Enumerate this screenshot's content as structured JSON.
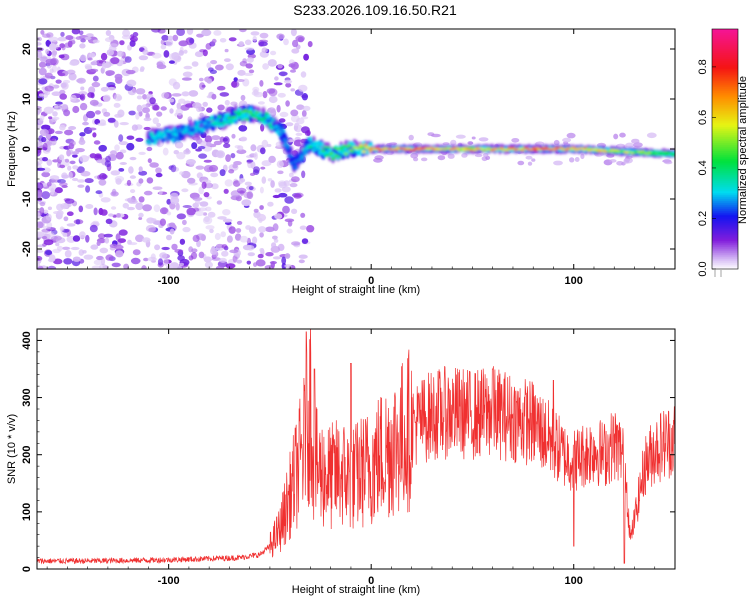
{
  "title": "S233.2026.109.16.50.R21",
  "colors": {
    "snr_line": "#f03030",
    "axis": "#000000",
    "background": "#ffffff"
  },
  "chart_data": [
    {
      "type": "heatmap",
      "xlabel": "Height of straight line (km)",
      "ylabel": "Frequency (Hz)",
      "xlim": [
        -165,
        150
      ],
      "ylim": [
        -24,
        24
      ],
      "x_ticks": [
        -100,
        0,
        100
      ],
      "y_ticks": [
        20,
        10,
        0,
        -10,
        -20
      ],
      "colormap": "rainbow (white-violet-blue-cyan-green-yellow-red-magenta)",
      "colorbar": {
        "label": "Normalized spectral amplitude",
        "range": [
          0,
          0.95
        ],
        "ticks": [
          0.0,
          0.2,
          0.4,
          0.6,
          0.8
        ]
      },
      "ridge": [
        {
          "x": -110,
          "freq": 2,
          "amp": 0.38
        },
        {
          "x": -95,
          "freq": 3,
          "amp": 0.3
        },
        {
          "x": -80,
          "freq": 5,
          "amp": 0.33
        },
        {
          "x": -65,
          "freq": 7,
          "amp": 0.48
        },
        {
          "x": -55,
          "freq": 7,
          "amp": 0.45
        },
        {
          "x": -45,
          "freq": 4,
          "amp": 0.3
        },
        {
          "x": -38,
          "freq": -3,
          "amp": 0.25
        },
        {
          "x": -30,
          "freq": 1,
          "amp": 0.38
        },
        {
          "x": -20,
          "freq": -1,
          "amp": 0.45
        },
        {
          "x": -10,
          "freq": 0,
          "amp": 0.5
        },
        {
          "x": 0,
          "freq": 0,
          "amp": 0.75
        },
        {
          "x": 20,
          "freq": 0,
          "amp": 0.8
        },
        {
          "x": 50,
          "freq": 0,
          "amp": 0.65
        },
        {
          "x": 80,
          "freq": 0,
          "amp": 0.8
        },
        {
          "x": 100,
          "freq": 0,
          "amp": 0.75
        },
        {
          "x": 150,
          "freq": -1,
          "amp": 0.45
        }
      ]
    },
    {
      "type": "line",
      "xlabel": "Height of straight line (km)",
      "ylabel": "SNR (10 * v/v)",
      "xlim": [
        -165,
        150
      ],
      "ylim": [
        0,
        420
      ],
      "x_ticks": [
        -100,
        0,
        100
      ],
      "y_ticks": [
        0,
        100,
        200,
        300,
        400
      ],
      "series": [
        {
          "x": [
            -165,
            -140,
            -120,
            -100,
            -80,
            -65,
            -55,
            -50,
            -45,
            -40,
            -35,
            -32,
            -30,
            -28,
            -25,
            -20,
            -15,
            -10,
            -5,
            0,
            5,
            10,
            15,
            20,
            30,
            40,
            50,
            60,
            70,
            80,
            90,
            95,
            100,
            110,
            115,
            120,
            125,
            128,
            135,
            140,
            150
          ],
          "y": [
            14,
            14,
            15,
            16,
            18,
            20,
            25,
            40,
            70,
            130,
            190,
            230,
            300,
            180,
            170,
            160,
            170,
            155,
            170,
            180,
            200,
            215,
            230,
            250,
            270,
            275,
            270,
            275,
            265,
            255,
            220,
            200,
            190,
            210,
            200,
            220,
            200,
            50,
            180,
            210,
            230
          ],
          "spike_x": [
            -32,
            -28,
            -10,
            60,
            90,
            100,
            125
          ],
          "spike_y": [
            415,
            350,
            360,
            350,
            330,
            40,
            10
          ]
        }
      ]
    }
  ]
}
